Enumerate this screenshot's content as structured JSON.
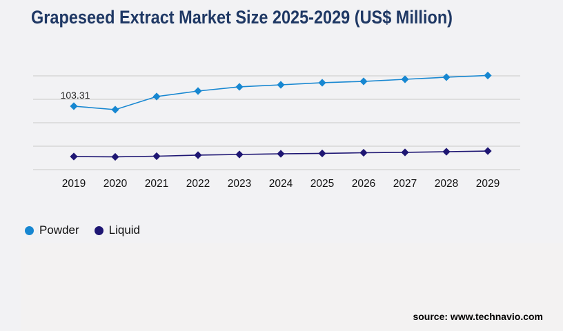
{
  "title": "Grapeseed Extract Market Size 2025-2029 (US$ Million)",
  "chart_data": {
    "type": "line",
    "x": [
      2019,
      2020,
      2021,
      2022,
      2023,
      2024,
      2025,
      2026,
      2027,
      2028,
      2029
    ],
    "series": [
      {
        "name": "Powder",
        "color": "#1787d1",
        "marker": "diamond",
        "values": [
          103.31,
          97.7,
          119.0,
          128.0,
          134.8,
          138.1,
          141.5,
          143.7,
          147.1,
          150.5,
          153.3
        ]
      },
      {
        "name": "Liquid",
        "color": "#1e1673",
        "marker": "diamond",
        "values": [
          21.3,
          20.8,
          21.9,
          23.6,
          24.7,
          25.8,
          26.4,
          27.5,
          28.1,
          29.2,
          30.3
        ]
      }
    ],
    "point_label": {
      "series": "Powder",
      "year": 2019,
      "text": "103.31"
    },
    "title": "Grapeseed Extract Market Size 2025-2029 (US$ Million)",
    "xlabel": "",
    "ylabel": "",
    "ylim": [
      0,
      152.7
    ],
    "gridline_count": 5,
    "grid": true,
    "y_axis_labels_visible": false,
    "legend_position": "bottom-left"
  },
  "legend": {
    "items": [
      {
        "label": "Powder",
        "color": "#1787d1"
      },
      {
        "label": "Liquid",
        "color": "#1e1673"
      }
    ]
  },
  "source": {
    "text": "source: www.technavio.com"
  },
  "colors": {
    "title": "#1f3864",
    "background": "#f2f2f4",
    "gridline": "#c9c9c9",
    "axis_label": "#111111",
    "data_label": "#262626"
  }
}
